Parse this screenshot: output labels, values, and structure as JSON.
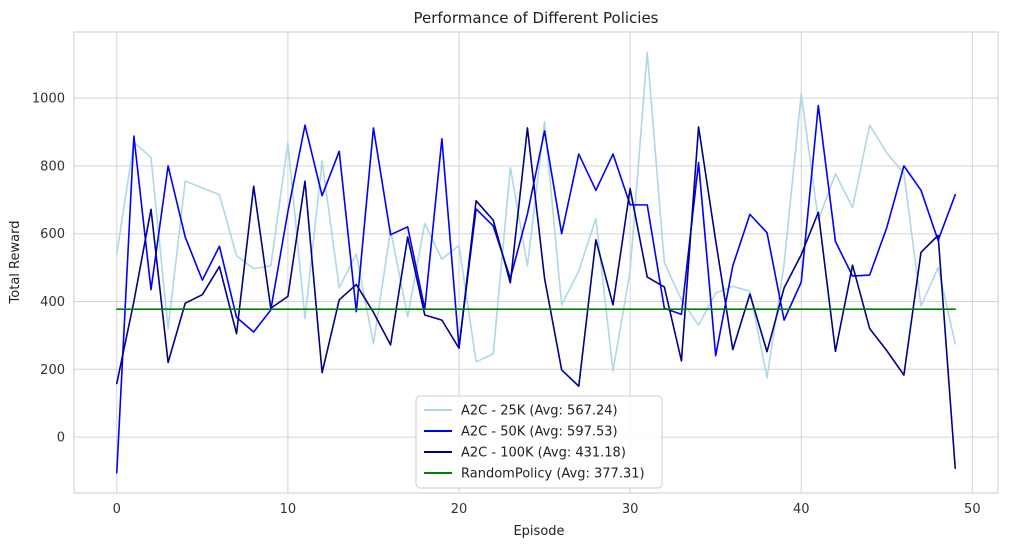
{
  "chart_data": {
    "type": "line",
    "title": "Performance of Different Policies",
    "xlabel": "Episode",
    "ylabel": "Total Reward",
    "xlim": [
      -2.5,
      51.5
    ],
    "ylim": [
      -165,
      1195
    ],
    "xticks": [
      0,
      10,
      20,
      30,
      40,
      50
    ],
    "yticks": [
      0,
      200,
      400,
      600,
      800,
      1000
    ],
    "grid": true,
    "legend_position": "lower-center",
    "x": [
      0,
      1,
      2,
      3,
      4,
      5,
      6,
      7,
      8,
      9,
      10,
      11,
      12,
      13,
      14,
      15,
      16,
      17,
      18,
      19,
      20,
      21,
      22,
      23,
      24,
      25,
      26,
      27,
      28,
      29,
      30,
      31,
      32,
      33,
      34,
      35,
      36,
      37,
      38,
      39,
      40,
      41,
      42,
      43,
      44,
      45,
      46,
      47,
      48,
      49
    ],
    "series": [
      {
        "name": "A2C - 25K",
        "legend_label": "A2C - 25K (Avg: 567.24)",
        "color": "#add8e6",
        "values": [
          540,
          870,
          825,
          320,
          755,
          735,
          715,
          535,
          497,
          505,
          868,
          350,
          815,
          440,
          540,
          275,
          610,
          355,
          630,
          525,
          565,
          222,
          245,
          795,
          505,
          930,
          390,
          490,
          645,
          195,
          490,
          1135,
          515,
          405,
          330,
          425,
          445,
          430,
          175,
          510,
          1012,
          640,
          777,
          677,
          920,
          838,
          778,
          387,
          500,
          275
        ]
      },
      {
        "name": "A2C - 50K",
        "legend_label": "A2C - 50K (Avg: 597.53)",
        "color": "#0000ff",
        "values": [
          -105,
          888,
          435,
          800,
          590,
          463,
          563,
          353,
          310,
          375,
          665,
          920,
          712,
          843,
          370,
          912,
          597,
          620,
          378,
          880,
          265,
          673,
          623,
          468,
          658,
          903,
          600,
          835,
          728,
          835,
          685,
          685,
          380,
          362,
          810,
          240,
          505,
          657,
          603,
          345,
          457,
          978,
          577,
          475,
          478,
          618,
          800,
          728,
          580,
          715
        ]
      },
      {
        "name": "A2C - 100K",
        "legend_label": "A2C - 100K (Avg: 431.18)",
        "color": "#00008b",
        "values": [
          158,
          400,
          672,
          220,
          395,
          420,
          503,
          305,
          740,
          380,
          415,
          755,
          190,
          405,
          450,
          368,
          272,
          590,
          360,
          345,
          262,
          697,
          640,
          455,
          912,
          468,
          198,
          150,
          582,
          390,
          733,
          472,
          443,
          225,
          915,
          580,
          258,
          422,
          252,
          440,
          538,
          663,
          253,
          507,
          320,
          255,
          183,
          545,
          595,
          -92
        ]
      },
      {
        "name": "RandomPolicy",
        "legend_label": "RandomPolicy (Avg: 377.31)",
        "color": "#008000",
        "values": [
          377.31,
          377.31,
          377.31,
          377.31,
          377.31,
          377.31,
          377.31,
          377.31,
          377.31,
          377.31,
          377.31,
          377.31,
          377.31,
          377.31,
          377.31,
          377.31,
          377.31,
          377.31,
          377.31,
          377.31,
          377.31,
          377.31,
          377.31,
          377.31,
          377.31,
          377.31,
          377.31,
          377.31,
          377.31,
          377.31,
          377.31,
          377.31,
          377.31,
          377.31,
          377.31,
          377.31,
          377.31,
          377.31,
          377.31,
          377.31,
          377.31,
          377.31,
          377.31,
          377.31,
          377.31,
          377.31,
          377.31,
          377.31,
          377.31,
          377.31
        ]
      }
    ]
  }
}
